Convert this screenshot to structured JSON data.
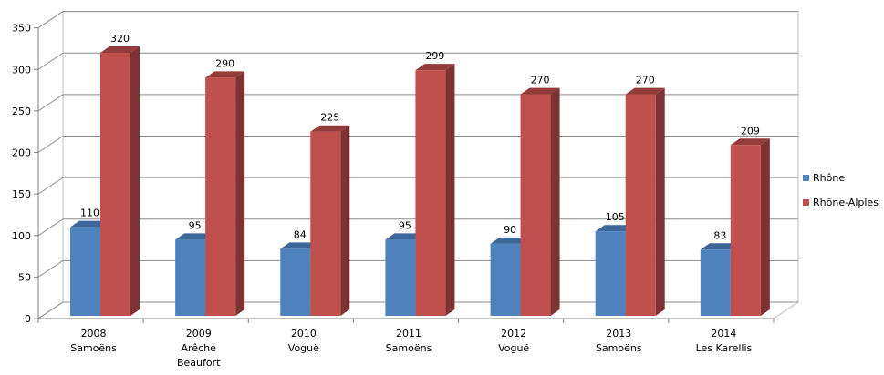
{
  "chart_data": {
    "type": "bar",
    "categories": [
      [
        "2008",
        "Samoëns"
      ],
      [
        "2009",
        "Arêche",
        "Beaufort"
      ],
      [
        "2010",
        "Voguë"
      ],
      [
        "2011",
        "Samoëns"
      ],
      [
        "2012",
        "Voguë"
      ],
      [
        "2013",
        "Samoëns"
      ],
      [
        "2014",
        "Les Karellis"
      ]
    ],
    "series": [
      {
        "name": "Rhône",
        "values": [
          110,
          95,
          84,
          95,
          90,
          105,
          83
        ],
        "color": "#4F81BD",
        "shade": "#385D8A",
        "top": "#3D6699"
      },
      {
        "name": "Rhône-Alples",
        "values": [
          320,
          290,
          225,
          299,
          270,
          270,
          209
        ],
        "color": "#C0504D",
        "shade": "#7D3331",
        "top": "#943C3A"
      }
    ],
    "ylim": [
      0,
      350
    ],
    "yticks": [
      0,
      50,
      100,
      150,
      200,
      250,
      300,
      350
    ],
    "grid": true,
    "style": "3d-clustered-column",
    "legend_position": "right"
  }
}
